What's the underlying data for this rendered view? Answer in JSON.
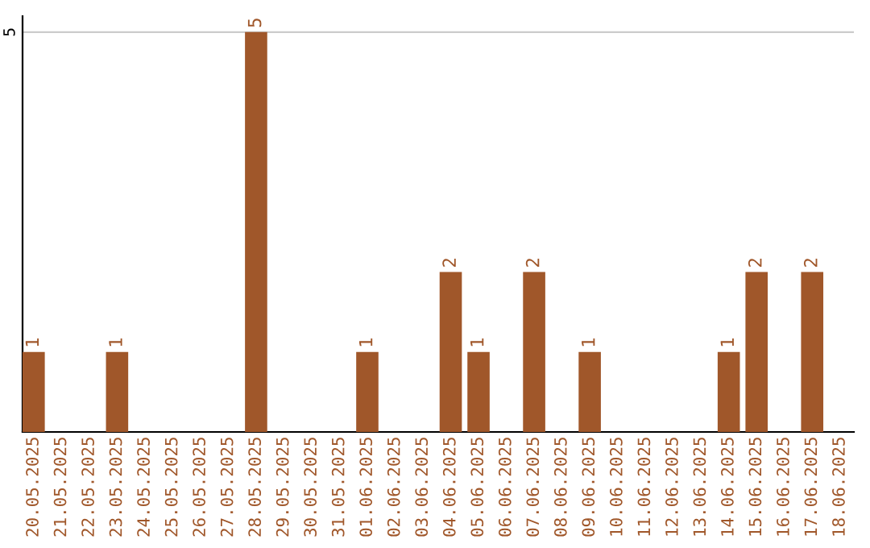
{
  "chart_data": {
    "type": "bar",
    "categories": [
      "20.05.2025",
      "21.05.2025",
      "22.05.2025",
      "23.05.2025",
      "24.05.2025",
      "25.05.2025",
      "26.05.2025",
      "27.05.2025",
      "28.05.2025",
      "29.05.2025",
      "30.05.2025",
      "31.05.2025",
      "01.06.2025",
      "02.06.2025",
      "03.06.2025",
      "04.06.2025",
      "05.06.2025",
      "06.06.2025",
      "07.06.2025",
      "08.06.2025",
      "09.06.2025",
      "10.06.2025",
      "11.06.2025",
      "12.06.2025",
      "13.06.2025",
      "14.06.2025",
      "15.06.2025",
      "16.06.2025",
      "17.06.2025",
      "18.06.2025"
    ],
    "values": [
      1,
      0,
      0,
      1,
      0,
      0,
      0,
      0,
      5,
      0,
      0,
      0,
      1,
      0,
      0,
      2,
      1,
      0,
      2,
      0,
      1,
      0,
      0,
      0,
      0,
      1,
      2,
      0,
      2,
      0
    ],
    "value_labels": [
      "1",
      null,
      null,
      "1",
      null,
      null,
      null,
      null,
      "5",
      null,
      null,
      null,
      "1",
      null,
      null,
      "2",
      "1",
      null,
      "2",
      null,
      "1",
      null,
      null,
      null,
      null,
      "1",
      "2",
      null,
      "2",
      null
    ],
    "color": "#a0572a",
    "ylim": [
      0,
      5.2
    ],
    "yticks": [
      5
    ],
    "grid": "y",
    "legend": false
  }
}
